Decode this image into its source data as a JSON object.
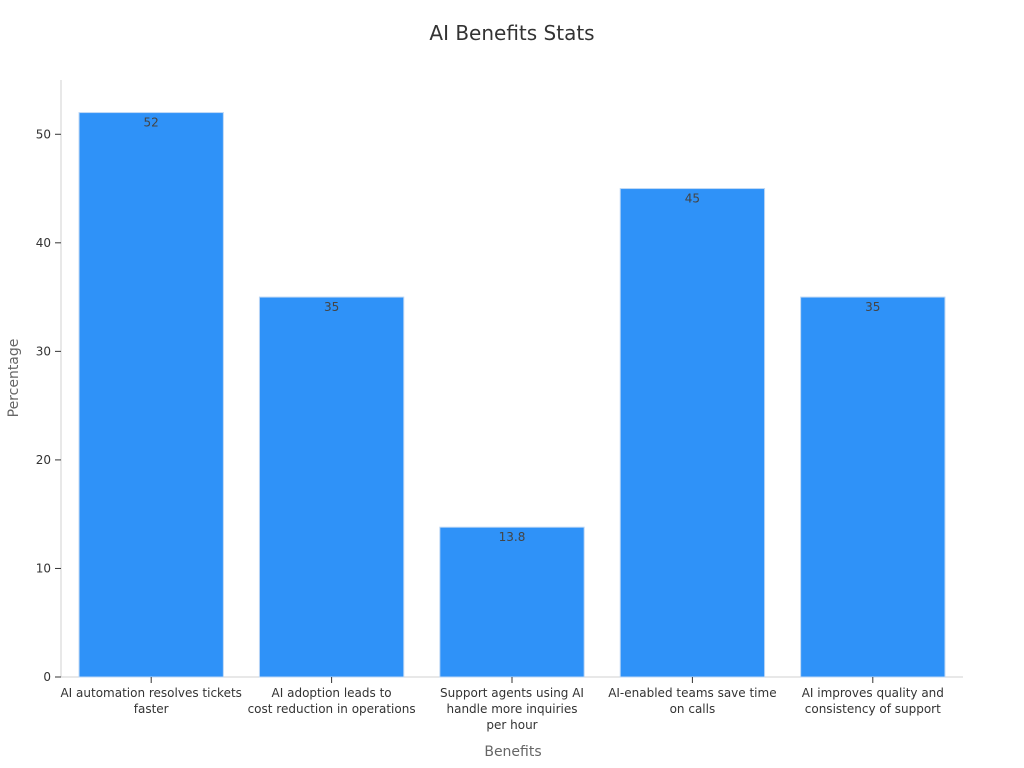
{
  "chart_data": {
    "type": "bar",
    "title": "AI Benefits Stats",
    "xlabel": "Benefits",
    "ylabel": "Percentage",
    "categories": [
      [
        "AI automation resolves tickets",
        "faster"
      ],
      [
        "AI adoption leads to",
        "cost reduction in operations"
      ],
      [
        "Support agents using AI",
        "handle more inquiries",
        "per hour"
      ],
      [
        "AI-enabled teams save time",
        "on calls"
      ],
      [
        "AI improves quality and",
        "consistency of support"
      ]
    ],
    "values": [
      52,
      35,
      13.8,
      45,
      35
    ],
    "data_labels": [
      "52",
      "35",
      "13.8",
      "45",
      "35"
    ],
    "ylim": [
      0,
      55
    ],
    "yticks": [
      0,
      10,
      20,
      30,
      40,
      50
    ],
    "grid": false,
    "bar_color": "#2f92f8",
    "bar_edge_color": "#bcd7f5"
  }
}
